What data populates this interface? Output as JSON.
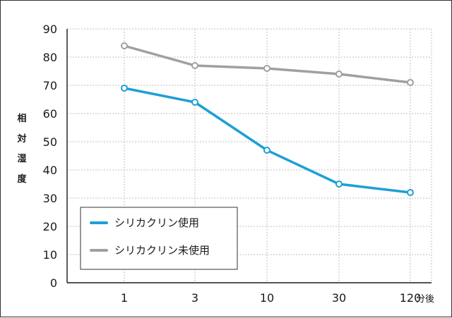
{
  "chart_data": {
    "type": "line",
    "x": [
      "1",
      "3",
      "10",
      "30",
      "120"
    ],
    "x_unit": "分後",
    "ylabel": [
      "相",
      "対",
      "湿",
      "度"
    ],
    "ylim": [
      0,
      90
    ],
    "yticks": [
      0,
      10,
      20,
      30,
      40,
      50,
      60,
      70,
      80,
      90
    ],
    "grid": true,
    "legend_position": "bottom-left",
    "series": [
      {
        "name": "シリカクリン使用",
        "color": "#1e9fd6",
        "values": [
          69,
          64,
          47,
          35,
          32
        ]
      },
      {
        "name": "シリカクリン未使用",
        "color": "#a0a0a0",
        "values": [
          84,
          77,
          76,
          74,
          71
        ]
      }
    ]
  }
}
